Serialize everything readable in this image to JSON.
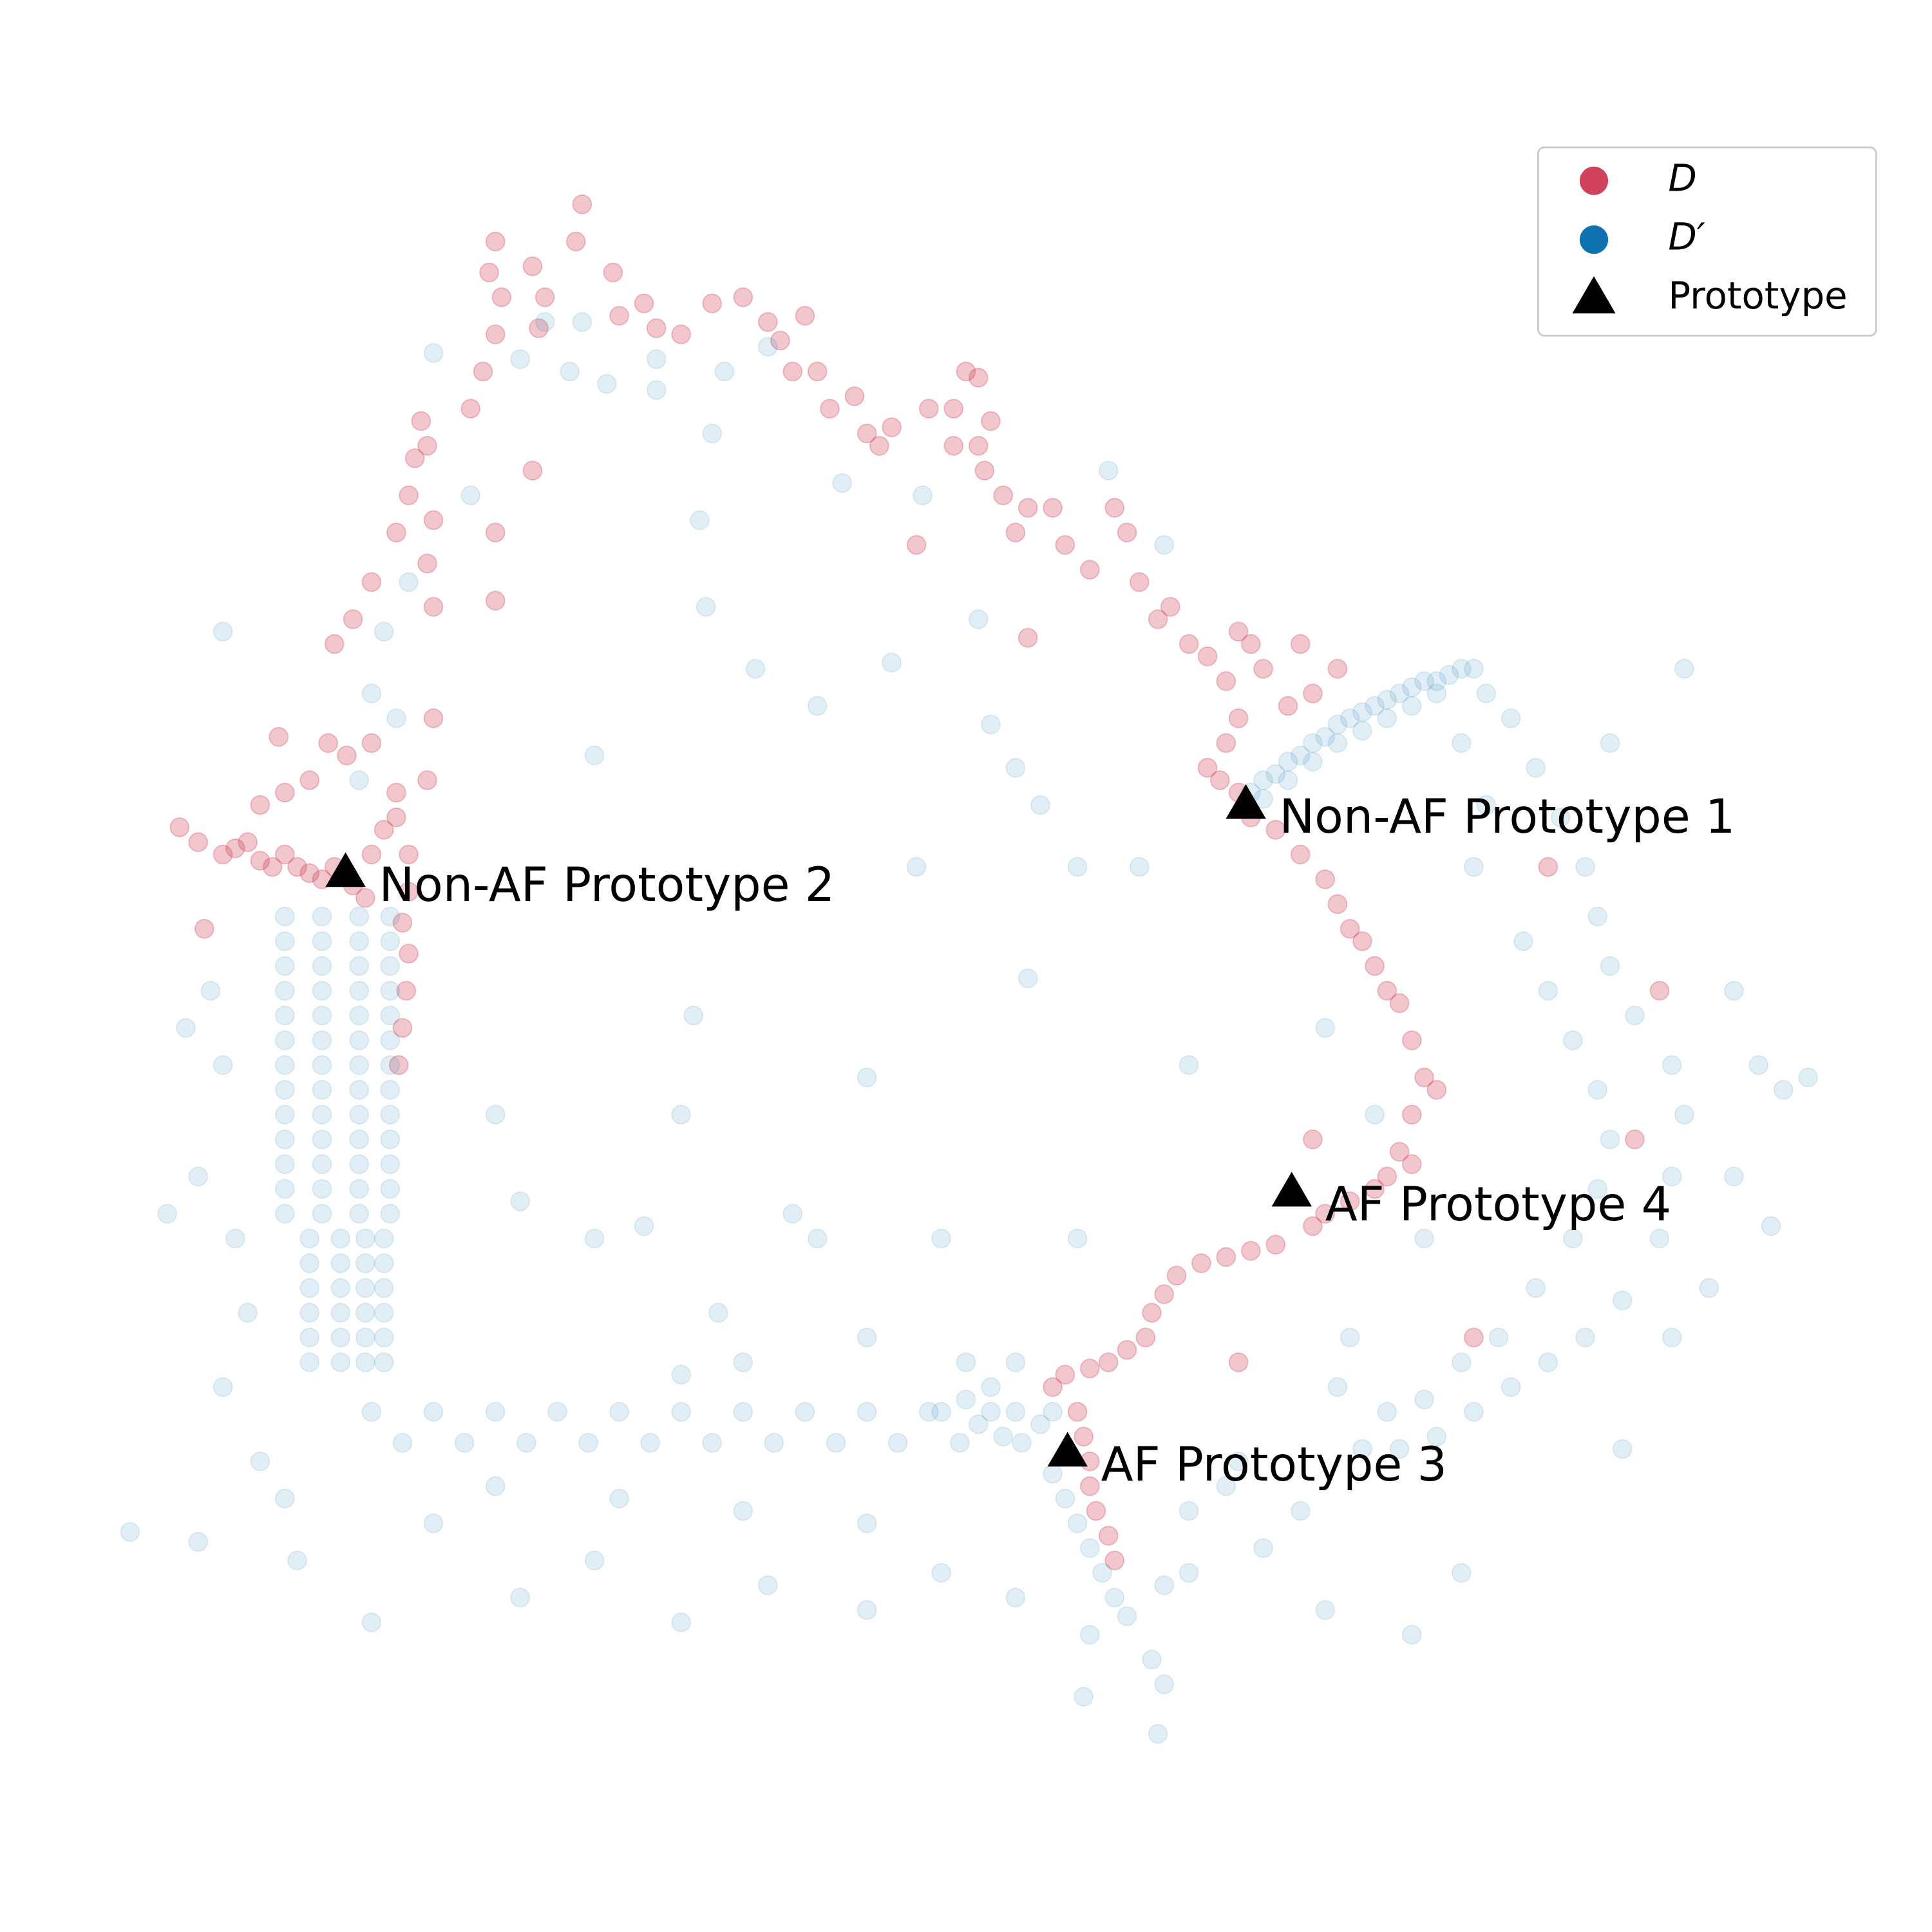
{
  "chart_data": {
    "type": "scatter",
    "xlim": [
      0,
      156
    ],
    "ylim": [
      0,
      156
    ],
    "legend": "upper right",
    "series": [
      {
        "name": "D",
        "color": "#d1435b",
        "alpha": 0.3,
        "marker": "circle",
        "x": [
          27,
          28.5,
          30,
          32,
          33,
          33.5,
          34,
          34.5,
          35,
          34.5,
          35,
          38,
          39,
          40,
          40.5,
          39.5,
          40,
          43,
          43.5,
          44,
          47,
          46.5,
          49.5,
          50,
          52,
          53,
          55,
          57.5,
          60,
          62,
          63,
          65,
          64,
          66,
          67,
          69,
          70,
          71,
          72,
          75,
          77,
          78,
          79,
          80,
          79,
          77,
          79.5,
          81,
          82,
          83,
          85,
          86,
          88,
          90,
          91,
          92,
          93.5,
          94.5,
          96,
          97.5,
          99,
          100,
          101,
          102,
          104,
          105,
          106,
          108,
          100,
          99,
          97.5,
          98.5,
          100,
          101,
          103,
          105,
          107,
          108,
          109,
          110,
          111,
          112,
          113,
          114,
          115,
          116,
          114,
          113,
          114,
          112,
          111,
          109,
          107,
          106,
          103,
          101,
          99,
          97,
          95,
          94,
          93,
          92.5,
          91,
          89.5,
          88,
          86,
          85,
          87,
          87.5,
          88,
          88,
          88.5,
          89.5,
          90,
          100,
          106,
          119,
          132,
          134,
          125,
          83,
          74,
          14.5,
          16,
          18,
          19,
          20,
          21,
          22,
          23,
          24,
          25,
          26,
          27,
          28.5,
          29.5,
          30,
          31,
          32,
          33,
          21,
          23,
          25,
          26.5,
          28,
          30,
          32,
          33,
          32.5,
          33,
          32.8,
          32.5,
          32.2,
          16.5,
          22.5,
          34.5,
          35,
          40,
          40,
          43
        ],
        "values": [
          104,
          106,
          109,
          113,
          116,
          119,
          122,
          120,
          114,
          110.5,
          107,
          123,
          126,
          129,
          132,
          134,
          136.5,
          134.5,
          129.5,
          132,
          139.5,
          136.5,
          134,
          130.5,
          131.5,
          129.5,
          129,
          131.5,
          132,
          130,
          128.5,
          130.5,
          126,
          126,
          123,
          124,
          121,
          120,
          121.5,
          123,
          123,
          126,
          125.5,
          122,
          120,
          120,
          118,
          116,
          113,
          115,
          115,
          112,
          110,
          115,
          113,
          109,
          106,
          107,
          104,
          103,
          101,
          105,
          104,
          102,
          99,
          104,
          100,
          102,
          98,
          96,
          94,
          93,
          92,
          90,
          89,
          87,
          85,
          83,
          81,
          80,
          78,
          76,
          75,
          72,
          69,
          68,
          66,
          63,
          62,
          61,
          60,
          59,
          58,
          57,
          55.5,
          55,
          54.5,
          54,
          53,
          51.5,
          50,
          48,
          47,
          46,
          45.5,
          45,
          44,
          42,
          40,
          38,
          36,
          34,
          32,
          30,
          46,
          64,
          48,
          64,
          76,
          86,
          104.5,
          112,
          89.2,
          88,
          87,
          87.5,
          88,
          86.5,
          86,
          87,
          86,
          85.5,
          85,
          86,
          84.5,
          83.5,
          87,
          89,
          90,
          87,
          91,
          92,
          93,
          96,
          95,
          96,
          92,
          84,
          81.5,
          79,
          76,
          73,
          70,
          81,
          96.5,
          93,
          98,
          113,
          107.5,
          118
        ]
      },
      {
        "name": "D′",
        "color": "#0e72b1",
        "alpha": 0.12,
        "marker": "circle",
        "x": [
          23,
          26,
          29,
          31.5,
          23,
          26,
          29,
          31.5,
          23,
          26,
          29,
          31.5,
          23,
          26,
          29,
          31.5,
          23,
          26,
          29,
          31.5,
          23,
          26,
          29,
          31.5,
          23,
          26,
          29,
          31.5,
          23,
          26,
          29,
          31.5,
          23,
          26,
          29,
          31.5,
          23,
          26,
          29,
          31.5,
          23,
          26,
          29,
          31.5,
          23,
          26,
          29,
          31.5,
          23,
          26,
          29,
          31.5,
          25,
          27.5,
          29.5,
          31,
          25,
          27.5,
          29.5,
          31,
          25,
          27.5,
          29.5,
          31,
          25,
          27.5,
          29.5,
          31,
          25,
          27.5,
          29.5,
          31,
          25,
          27.5,
          29.5,
          31,
          17,
          18,
          16,
          19,
          20,
          18,
          21,
          23,
          15,
          13.5,
          10.5,
          16,
          30,
          24,
          30,
          32.5,
          35,
          37.5,
          40,
          42.5,
          45,
          47.5,
          50,
          52.5,
          55,
          57.5,
          60,
          62.5,
          65,
          67.5,
          70,
          72.5,
          75,
          77.5,
          80,
          82.5,
          85,
          35,
          42,
          48,
          55,
          62,
          70,
          76,
          82,
          88,
          93,
          94,
          93.5,
          87.5,
          40,
          50,
          60,
          70,
          78,
          80,
          82,
          84,
          81,
          79,
          76,
          85,
          86,
          87,
          88,
          89,
          90,
          91,
          94,
          96,
          55,
          60,
          70,
          78,
          82,
          87,
          76,
          58,
          48,
          42,
          52,
          64,
          66,
          48,
          56,
          40,
          55,
          70,
          83,
          74,
          82,
          84,
          92,
          87,
          96,
          107,
          111,
          115,
          66,
          57,
          61,
          72,
          80,
          89.5,
          94,
          74.5,
          79,
          38,
          33,
          31,
          30,
          32,
          29,
          18,
          35,
          46,
          42,
          44,
          47,
          49,
          53,
          53,
          58.5,
          62,
          68,
          56.5,
          57.5,
          101,
          102,
          103,
          104,
          105,
          106,
          107,
          108,
          109,
          110,
          111,
          112,
          113,
          114,
          115,
          116,
          117,
          118,
          119,
          102,
          104,
          106,
          108,
          110,
          112,
          114,
          116,
          120,
          122,
          124,
          126,
          128,
          129,
          130,
          132,
          135,
          136,
          135,
          134,
          131,
          128,
          125,
          122,
          119,
          116,
          113,
          110,
          118,
          120,
          119,
          123,
          125,
          127,
          129,
          130,
          129,
          127,
          124,
          121,
          118,
          115,
          136,
          130,
          140,
          142,
          146,
          144,
          143,
          140,
          138,
          135,
          131,
          118,
          107,
          114,
          100,
          105,
          102,
          109,
          96,
          99,
          108,
          112
        ],
        "values": [
          82,
          82,
          82,
          82,
          80,
          80,
          80,
          80,
          78,
          78,
          78,
          78,
          76,
          76,
          76,
          76,
          74,
          74,
          74,
          74,
          72,
          72,
          72,
          72,
          70,
          70,
          70,
          70,
          68,
          68,
          68,
          68,
          66,
          66,
          66,
          66,
          64,
          64,
          64,
          64,
          62,
          62,
          62,
          62,
          60,
          60,
          60,
          60,
          58,
          58,
          58,
          58,
          56,
          56,
          56,
          56,
          54,
          54,
          54,
          54,
          52,
          52,
          52,
          52,
          50,
          50,
          50,
          50,
          48,
          48,
          48,
          48,
          46,
          46,
          46,
          46,
          76,
          70,
          61,
          56,
          50,
          44,
          38,
          35,
          73,
          58,
          32.3,
          31.5,
          25,
          30,
          42,
          39.5,
          42,
          39.5,
          42,
          39.5,
          42,
          39.5,
          42,
          39.5,
          42,
          39.5,
          42,
          39.5,
          42,
          39.5,
          42,
          39.5,
          42,
          39.5,
          42,
          39.5,
          42,
          33,
          27,
          30,
          25,
          28,
          26,
          29,
          27,
          24,
          22,
          20,
          16,
          19,
          36,
          35,
          34,
          33,
          43,
          44,
          42,
          41,
          40,
          41,
          42,
          37,
          35,
          33,
          31,
          29,
          27,
          25.5,
          28,
          29,
          45,
          46,
          48,
          46,
          46,
          56,
          56,
          50,
          56,
          59,
          57,
          58,
          56,
          95,
          74,
          66,
          66,
          69,
          77,
          86,
          94,
          91,
          86,
          86,
          70,
          73,
          66,
          56,
          99,
          107,
          102,
          102.5,
          97.5,
          118,
          112,
          116,
          106,
          116,
          109,
          105,
          100,
          98,
          93,
          105,
          127.5,
          126,
          127,
          130,
          130,
          125,
          124.5,
          127,
          126,
          128,
          117,
          114,
          121,
          92,
          93,
          93.5,
          94.5,
          95,
          96,
          96.5,
          97.5,
          98,
          98.5,
          99,
          99.5,
          100,
          100.5,
          101,
          101,
          101.5,
          102,
          102,
          91.5,
          93,
          94.5,
          96,
          97,
          98,
          99,
          100,
          100,
          98,
          94,
          90,
          86,
          82,
          78,
          74,
          70,
          66,
          61,
          56,
          51,
          48,
          46,
          44,
          42,
          40,
          39,
          39,
          96,
          91,
          86,
          80,
          76,
          72,
          68,
          64,
          60,
          56,
          52,
          48,
          46,
          43,
          102,
          96,
          76,
          70,
          69,
          68,
          57,
          61,
          52,
          48,
          39,
          29,
          26,
          24,
          38,
          34,
          31,
          48,
          34,
          36,
          44,
          42
        ]
      },
      {
        "name": "Prototype",
        "color": "#000000",
        "alpha": 1,
        "marker": "triangle",
        "x": [
          100.6,
          27.9,
          86.2,
          104.3
        ],
        "values": [
          91.0,
          85.5,
          38.7,
          59.7
        ],
        "point_labels": [
          "Non-AF Prototype 1",
          "Non-AF Prototype 2",
          "AF Prototype 3",
          "AF Prototype 4"
        ]
      }
    ]
  }
}
